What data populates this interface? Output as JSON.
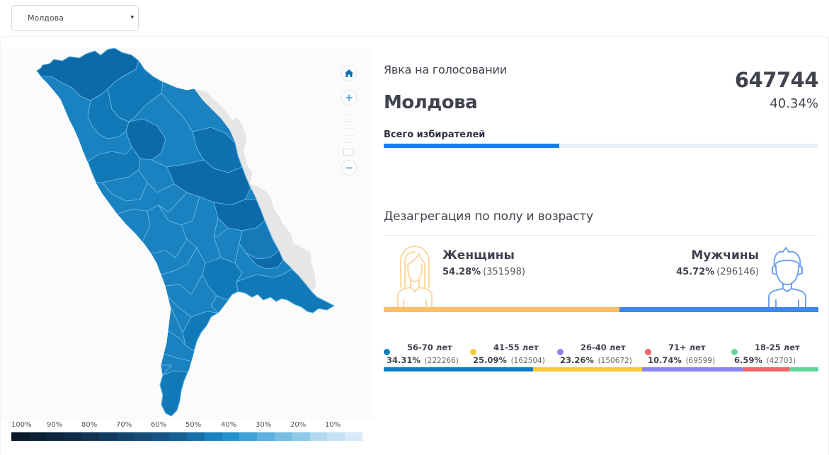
{
  "header": {
    "region_select": {
      "value": "Молдова",
      "caret": "▾"
    }
  },
  "map": {
    "controls": {
      "home": "home-icon",
      "zoom_in": "+",
      "zoom_out": "−"
    },
    "legend": {
      "labels": [
        "100%",
        "90%",
        "80%",
        "70%",
        "60%",
        "50%",
        "40%",
        "30%",
        "20%",
        "10%"
      ],
      "colors": [
        "#0a1a2a",
        "#0c2033",
        "#0e263d",
        "#0f2d48",
        "#113453",
        "#123c5f",
        "#13446b",
        "#154c77",
        "#155584",
        "#155f92",
        "#1670a8",
        "#1a82c0",
        "#2291d0",
        "#3ea1d8",
        "#5cb1e0",
        "#78bde4",
        "#8ec9e8",
        "#b2d9f0",
        "#c4e2f4",
        "#d6ebf7"
      ]
    }
  },
  "turnout": {
    "title": "Явка на голосовании",
    "count": "647744",
    "region": "Молдова",
    "percent": "40.34%",
    "voters_label": "Всего избирателей",
    "voters_fill_pct": 40.34,
    "bar_color": "#1481e8",
    "bar_track_color": "#e8eff7"
  },
  "disaggregation": {
    "title": "Дезагрегация по полу и возрасту",
    "women": {
      "label": "Женщины",
      "percent": "54.28%",
      "count": "(351598)",
      "share": 54.28,
      "color": "#fcbf66"
    },
    "men": {
      "label": "Мужчины",
      "percent": "45.72%",
      "count": "(296146)",
      "share": 45.72,
      "color": "#3d87ee"
    },
    "ages": [
      {
        "label": "56-70 лет",
        "percent": "34.31%",
        "count": "(222266)",
        "share": 34.31,
        "color": "#0b7dc6"
      },
      {
        "label": "41-55 лет",
        "percent": "25.09%",
        "count": "(162504)",
        "share": 25.09,
        "color": "#f9c738"
      },
      {
        "label": "26-40 лет",
        "percent": "23.26%",
        "count": "(150672)",
        "share": 23.26,
        "color": "#8a83f2"
      },
      {
        "label": "71+ лет",
        "percent": "10.74%",
        "count": "(69599)",
        "share": 10.74,
        "color": "#f26266"
      },
      {
        "label": "18-25 лет",
        "percent": "6.59%",
        "count": "(42703)",
        "share": 6.59,
        "color": "#5dd89a"
      }
    ]
  }
}
